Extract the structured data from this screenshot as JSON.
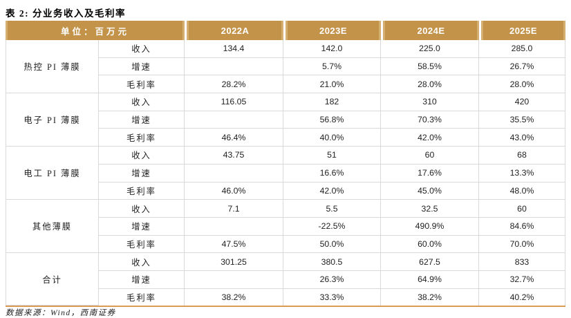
{
  "page": {
    "title": "表 2: 分业务收入及毛利率",
    "source_note": "数据来源：Wind，西南证券"
  },
  "colors": {
    "header_gold": "#C29349",
    "header_gold_light": "#D5AE72",
    "bottom_border_gold": "#D99C52",
    "grid_line": "#D9D9D9"
  },
  "table": {
    "unit_header": "单位：百万元",
    "year_headers": [
      "2022A",
      "2023E",
      "2024E",
      "2025E"
    ],
    "groups": [
      {
        "label": "热控 PI 薄膜",
        "rows": [
          {
            "metric": "收入",
            "values": [
              "134.4",
              "142.0",
              "225.0",
              "285.0"
            ]
          },
          {
            "metric": "增速",
            "values": [
              "",
              "5.7%",
              "58.5%",
              "26.7%"
            ]
          },
          {
            "metric": "毛利率",
            "values": [
              "28.2%",
              "21.0%",
              "28.0%",
              "28.0%"
            ]
          }
        ]
      },
      {
        "label": "电子 PI 薄膜",
        "rows": [
          {
            "metric": "收入",
            "values": [
              "116.05",
              "182",
              "310",
              "420"
            ]
          },
          {
            "metric": "增速",
            "values": [
              "",
              "56.8%",
              "70.3%",
              "35.5%"
            ]
          },
          {
            "metric": "毛利率",
            "values": [
              "46.4%",
              "40.0%",
              "42.0%",
              "43.0%"
            ]
          }
        ]
      },
      {
        "label": "电工 PI 薄膜",
        "rows": [
          {
            "metric": "收入",
            "values": [
              "43.75",
              "51",
              "60",
              "68"
            ]
          },
          {
            "metric": "增速",
            "values": [
              "",
              "16.6%",
              "17.6%",
              "13.3%"
            ]
          },
          {
            "metric": "毛利率",
            "values": [
              "46.0%",
              "42.0%",
              "45.0%",
              "48.0%"
            ]
          }
        ]
      },
      {
        "label": "其他薄膜",
        "rows": [
          {
            "metric": "收入",
            "values": [
              "7.1",
              "5.5",
              "32.5",
              "60"
            ]
          },
          {
            "metric": "增速",
            "values": [
              "",
              "-22.5%",
              "490.9%",
              "84.6%"
            ]
          },
          {
            "metric": "毛利率",
            "values": [
              "47.5%",
              "50.0%",
              "60.0%",
              "70.0%"
            ]
          }
        ]
      },
      {
        "label": "合计",
        "rows": [
          {
            "metric": "收入",
            "values": [
              "301.25",
              "380.5",
              "627.5",
              "833"
            ]
          },
          {
            "metric": "增速",
            "values": [
              "",
              "26.3%",
              "64.9%",
              "32.7%"
            ]
          },
          {
            "metric": "毛利率",
            "values": [
              "38.2%",
              "33.3%",
              "38.2%",
              "40.2%"
            ]
          }
        ]
      }
    ]
  }
}
